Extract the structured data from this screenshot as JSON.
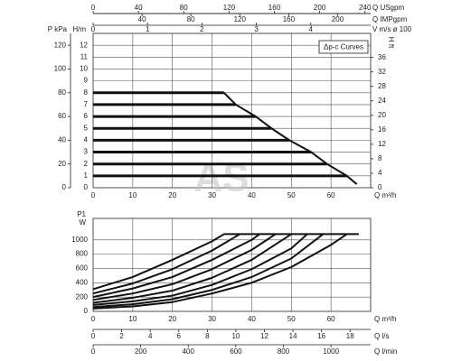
{
  "chart_data": [
    {
      "type": "line",
      "title": "Δp-c Curves",
      "color": "#111111",
      "grid": true,
      "watermark": "AS",
      "xlabel": "Q m³/h",
      "xlim": [
        0,
        70
      ],
      "xticks": [
        0,
        10,
        20,
        30,
        40,
        50,
        60
      ],
      "ylabel": "H/m",
      "ylim": [
        0,
        13
      ],
      "yticks": [
        0,
        1,
        2,
        3,
        4,
        5,
        6,
        7,
        8,
        9,
        10,
        11,
        12
      ],
      "y2label": "H ft",
      "y2lim": [
        0,
        42.65
      ],
      "y2ticks": [
        0,
        4,
        8,
        12,
        16,
        20,
        24,
        28,
        32,
        36
      ],
      "extra_axes": [
        {
          "label": "P kPa",
          "lim": [
            0,
            130
          ],
          "ticks": [
            0,
            20,
            40,
            60,
            80,
            100,
            120
          ]
        },
        {
          "label": "Q USgpm",
          "lim": [
            0,
            245
          ],
          "ticks": [
            0,
            40,
            80,
            120,
            160,
            200,
            240
          ]
        },
        {
          "label": "Q IMPgpm",
          "lim": [
            0,
            227
          ],
          "ticks": [
            40,
            80,
            120,
            160,
            200
          ]
        },
        {
          "label": "V m/s ø 100",
          "lim": [
            0,
            5.1
          ],
          "ticks": [
            0,
            1,
            2,
            3,
            4
          ]
        }
      ],
      "series": [
        {
          "x": [
            0,
            33
          ],
          "values": [
            8,
            8
          ]
        },
        {
          "x": [
            0,
            36
          ],
          "values": [
            7,
            7
          ]
        },
        {
          "x": [
            0,
            41
          ],
          "values": [
            6,
            6
          ]
        },
        {
          "x": [
            0,
            45
          ],
          "values": [
            5,
            5
          ]
        },
        {
          "x": [
            0,
            49.5
          ],
          "values": [
            4,
            4
          ]
        },
        {
          "x": [
            0,
            55
          ],
          "values": [
            3,
            3
          ]
        },
        {
          "x": [
            0,
            59
          ],
          "values": [
            2,
            2
          ]
        },
        {
          "x": [
            0,
            64
          ],
          "values": [
            1,
            1
          ]
        },
        {
          "x": [
            33,
            36,
            41,
            45,
            49.5,
            55,
            59,
            64,
            66.5
          ],
          "values": [
            8,
            7,
            6,
            5,
            4,
            3,
            2,
            1,
            0.3
          ]
        }
      ]
    },
    {
      "type": "line",
      "color": "#111111",
      "grid": true,
      "xlabel": "Q m³/h",
      "xlim": [
        0,
        70
      ],
      "xticks": [
        0,
        10,
        20,
        30,
        40,
        50,
        60
      ],
      "ylabel": "P1",
      "yunit": "W",
      "ylim": [
        0,
        1300
      ],
      "yticks": [
        0,
        200,
        400,
        600,
        800,
        1000
      ],
      "extra_axes": [
        {
          "label": "Q l/s",
          "lim": [
            0,
            19.44
          ],
          "ticks": [
            0,
            2,
            4,
            6,
            8,
            10,
            12,
            14,
            16,
            18
          ]
        },
        {
          "label": "Q l/min",
          "lim": [
            0,
            1166.7
          ],
          "ticks": [
            0,
            200,
            400,
            600,
            800,
            1000
          ]
        }
      ],
      "series": [
        {
          "x": [
            0,
            10,
            20,
            30,
            33,
            67
          ],
          "values": [
            310,
            480,
            720,
            980,
            1080,
            1080
          ]
        },
        {
          "x": [
            0,
            10,
            20,
            30,
            37
          ],
          "values": [
            250,
            390,
            590,
            850,
            1080
          ]
        },
        {
          "x": [
            0,
            10,
            20,
            30,
            40,
            42
          ],
          "values": [
            200,
            320,
            480,
            720,
            1000,
            1080
          ]
        },
        {
          "x": [
            0,
            10,
            20,
            30,
            40,
            46
          ],
          "values": [
            160,
            250,
            380,
            590,
            860,
            1080
          ]
        },
        {
          "x": [
            0,
            10,
            20,
            30,
            40,
            50
          ],
          "values": [
            120,
            190,
            290,
            470,
            720,
            1080
          ]
        },
        {
          "x": [
            0,
            10,
            20,
            30,
            40,
            50,
            54
          ],
          "values": [
            90,
            140,
            220,
            370,
            590,
            880,
            1080
          ]
        },
        {
          "x": [
            0,
            10,
            20,
            30,
            40,
            50,
            58
          ],
          "values": [
            60,
            100,
            170,
            300,
            480,
            740,
            1080
          ]
        },
        {
          "x": [
            0,
            10,
            20,
            30,
            40,
            50,
            60,
            64
          ],
          "values": [
            40,
            70,
            130,
            250,
            400,
            620,
            930,
            1080
          ]
        }
      ]
    }
  ]
}
